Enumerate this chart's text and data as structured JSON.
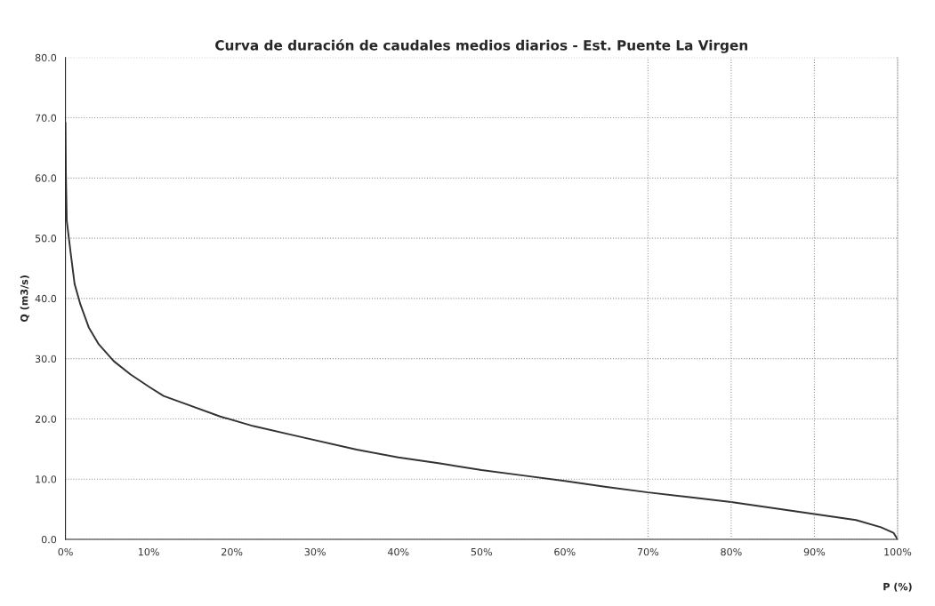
{
  "chart_data": {
    "type": "line",
    "title": "Curva de duración de caudales medios diarios - Est. Puente La Virgen",
    "xlabel": "P (%)",
    "ylabel": "Q (m3/s)",
    "x": [
      0,
      0.05,
      0.16,
      0.64,
      1.1,
      1.8,
      2.8,
      4,
      5.8,
      7.8,
      10.2,
      11.8,
      14.6,
      18.6,
      22.6,
      28,
      35,
      40,
      45,
      50,
      55,
      60,
      65,
      70,
      75,
      80,
      85,
      90,
      95,
      98,
      99.5,
      100
    ],
    "series": [
      {
        "color": "#333333",
        "values": [
          69.2,
          61,
          52.9,
          47.4,
          42.4,
          39,
          35.2,
          32.4,
          29.6,
          27.4,
          25.2,
          23.8,
          22.4,
          20.4,
          18.8,
          17.1,
          14.9,
          13.6,
          12.6,
          11.5,
          10.6,
          9.7,
          8.7,
          7.8,
          7.0,
          6.2,
          5.2,
          4.2,
          3.2,
          2.0,
          1.1,
          0
        ]
      }
    ],
    "xlim": [
      0,
      100
    ],
    "ylim": [
      0,
      80
    ],
    "xticks": [
      {
        "value": 0,
        "label": "0%"
      },
      {
        "value": 10,
        "label": "10%"
      },
      {
        "value": 20,
        "label": "20%"
      },
      {
        "value": 30,
        "label": "30%"
      },
      {
        "value": 40,
        "label": "40%"
      },
      {
        "value": 50,
        "label": "50%"
      },
      {
        "value": 60,
        "label": "60%"
      },
      {
        "value": 70,
        "label": "70%"
      },
      {
        "value": 80,
        "label": "80%"
      },
      {
        "value": 90,
        "label": "90%"
      },
      {
        "value": 100,
        "label": "100%"
      }
    ],
    "yticks": [
      {
        "value": 0,
        "label": "0.0"
      },
      {
        "value": 10,
        "label": "10.0"
      },
      {
        "value": 20,
        "label": "20.0"
      },
      {
        "value": 30,
        "label": "30.0"
      },
      {
        "value": 40,
        "label": "40.0"
      },
      {
        "value": 50,
        "label": "50.0"
      },
      {
        "value": 60,
        "label": "60.0"
      },
      {
        "value": 70,
        "label": "70.0"
      },
      {
        "value": 80,
        "label": "80.0"
      }
    ],
    "grid": "y",
    "marker": "none",
    "line_style": "solid",
    "ref_lines": [
      {
        "axis": "x",
        "value": 70,
        "color": "#999999",
        "line_style": "dotted"
      },
      {
        "axis": "x",
        "value": 80,
        "color": "#999999",
        "line_style": "dotted"
      },
      {
        "axis": "x",
        "value": 90,
        "color": "#999999",
        "line_style": "dotted"
      }
    ]
  }
}
